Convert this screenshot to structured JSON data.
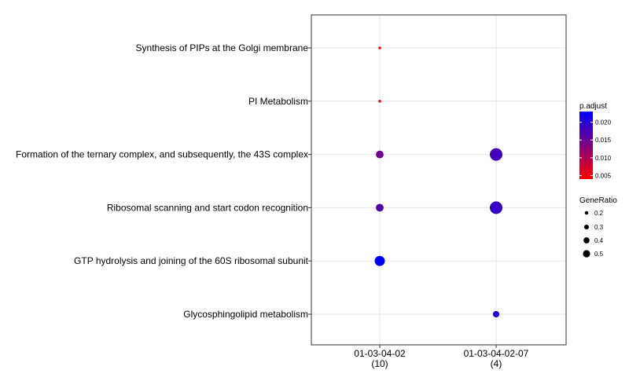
{
  "chart_data": {
    "type": "scatter",
    "title": "",
    "xlabel": "",
    "ylabel": "",
    "grid": true,
    "x_categories": [
      {
        "label": "01-03-04-02",
        "count": "(10)"
      },
      {
        "label": "01-03-04-02-07",
        "count": "(4)"
      }
    ],
    "y_categories": [
      "Synthesis of PIPs at the Golgi membrane",
      "PI Metabolism",
      "Formation of the ternary complex, and subsequently, the 43S complex",
      "Ribosomal scanning and start codon recognition",
      "GTP hydrolysis and joining of the 60S ribosomal subunit",
      "Glycosphingolipid metabolism"
    ],
    "points": [
      {
        "x": "01-03-04-02",
        "y": "Synthesis of PIPs at the Golgi membrane",
        "gene_ratio": 0.1,
        "p_adjust": 0.005
      },
      {
        "x": "01-03-04-02",
        "y": "PI Metabolism",
        "gene_ratio": 0.1,
        "p_adjust": 0.005
      },
      {
        "x": "01-03-04-02",
        "y": "Formation of the ternary complex, and subsequently, the 43S complex",
        "gene_ratio": 0.3,
        "p_adjust": 0.015
      },
      {
        "x": "01-03-04-02",
        "y": "Ribosomal scanning and start codon recognition",
        "gene_ratio": 0.3,
        "p_adjust": 0.017
      },
      {
        "x": "01-03-04-02",
        "y": "GTP hydrolysis and joining of the 60S ribosomal subunit",
        "gene_ratio": 0.4,
        "p_adjust": 0.023
      },
      {
        "x": "01-03-04-02-07",
        "y": "Formation of the ternary complex, and subsequently, the 43S complex",
        "gene_ratio": 0.5,
        "p_adjust": 0.018
      },
      {
        "x": "01-03-04-02-07",
        "y": "Ribosomal scanning and start codon recognition",
        "gene_ratio": 0.5,
        "p_adjust": 0.019
      },
      {
        "x": "01-03-04-02-07",
        "y": "Glycosphingolipid metabolism",
        "gene_ratio": 0.25,
        "p_adjust": 0.021
      }
    ],
    "legend": {
      "color": {
        "title": "p.adjust",
        "min": 0.004,
        "max": 0.023,
        "ticks": [
          "0.020",
          "0.015",
          "0.010",
          "0.005"
        ],
        "low_color": "#ff0000",
        "high_color": "#0000ff"
      },
      "size": {
        "title": "GeneRatio",
        "ticks": [
          "0.2",
          "0.3",
          "0.4",
          "0.5"
        ]
      },
      "placement": "right"
    }
  }
}
